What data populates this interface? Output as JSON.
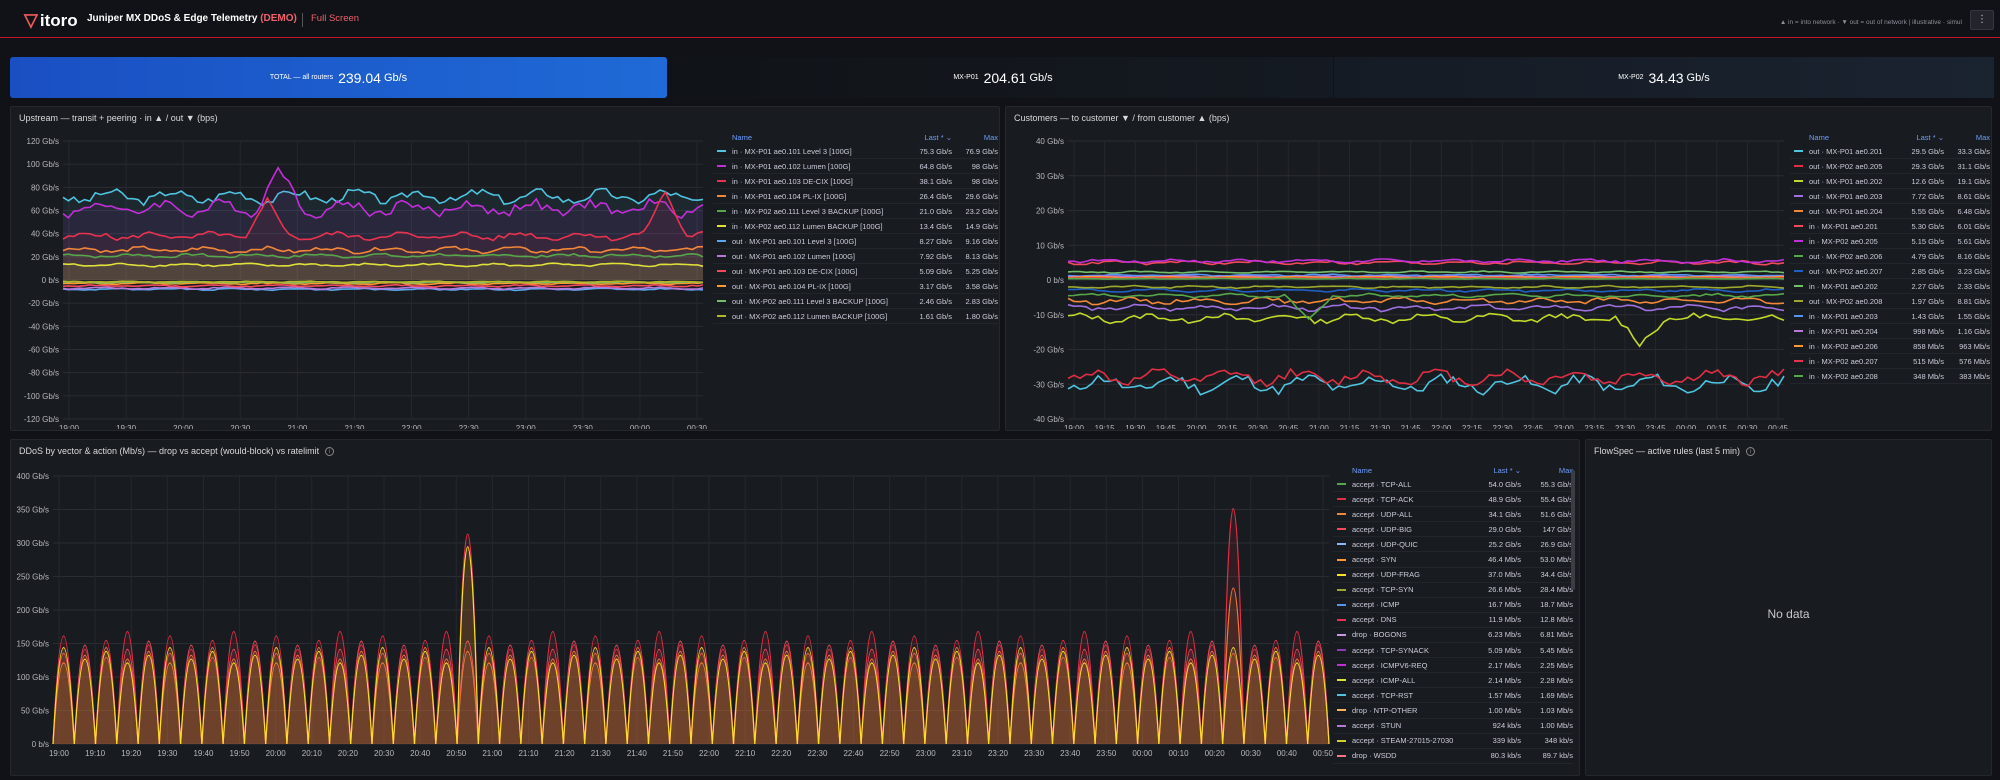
{
  "header": {
    "logo": "itoro",
    "title": "Juniper MX DDoS & Edge Telemetry",
    "demo": "(DEMO)",
    "fullscreen": "Full Screen",
    "legend_note": "▲ in = into network · ▼ out = out of network | illustrative · simul",
    "menu": "⋮"
  },
  "stats": [
    {
      "label": "TOTAL — all routers",
      "value": "239.04",
      "unit": "Gb/s"
    },
    {
      "label": "MX-P01",
      "value": "204.61",
      "unit": "Gb/s"
    },
    {
      "label": "MX-P02",
      "value": "34.43",
      "unit": "Gb/s"
    }
  ],
  "legend_headers": {
    "name": "Name",
    "last": "Last * ⌄",
    "max": "Max"
  },
  "panels": {
    "upstream": {
      "title": "Upstream — transit + peering · in ▲ / out ▼ (bps)",
      "yticks": [
        "120 Gb/s",
        "100 Gb/s",
        "80 Gb/s",
        "60 Gb/s",
        "40 Gb/s",
        "20 Gb/s",
        "0 b/s",
        "-20 Gb/s",
        "-40 Gb/s",
        "-60 Gb/s",
        "-80 Gb/s",
        "-100 Gb/s",
        "-120 Gb/s"
      ],
      "xticks": [
        "19:00",
        "19:30",
        "20:00",
        "20:30",
        "21:00",
        "21:30",
        "22:00",
        "22:30",
        "23:00",
        "23:30",
        "00:00",
        "00:30"
      ],
      "legend": [
        {
          "name": "in · MX-P01 ae0.101 Level 3 [100G]",
          "last": "75.3 Gb/s",
          "max": "76.9 Gb/s",
          "color": "#4fc3e0"
        },
        {
          "name": "in · MX-P01 ae0.102 Lumen [100G]",
          "last": "64.8 Gb/s",
          "max": "98 Gb/s",
          "color": "#c22fd9"
        },
        {
          "name": "in · MX-P01 ae0.103 DE-CIX [100G]",
          "last": "38.1 Gb/s",
          "max": "98 Gb/s",
          "color": "#e8324f"
        },
        {
          "name": "in · MX-P01 ae0.104 PL-IX [100G]",
          "last": "26.4 Gb/s",
          "max": "29.6 Gb/s",
          "color": "#f2873a"
        },
        {
          "name": "in · MX-P02 ae0.111 Level 3 BACKUP [100G]",
          "last": "21.0 Gb/s",
          "max": "23.2 Gb/s",
          "color": "#56a64b"
        },
        {
          "name": "in · MX-P02 ae0.112 Lumen BACKUP [100G]",
          "last": "13.4 Gb/s",
          "max": "14.9 Gb/s",
          "color": "#e0e03a"
        },
        {
          "name": "out · MX-P01 ae0.101 Level 3 [100G]",
          "last": "8.27 Gb/s",
          "max": "9.16 Gb/s",
          "color": "#5aa7f0"
        },
        {
          "name": "out · MX-P01 ae0.102 Lumen [100G]",
          "last": "7.92 Gb/s",
          "max": "8.13 Gb/s",
          "color": "#b877d9"
        },
        {
          "name": "out · MX-P01 ae0.103 DE-CIX [100G]",
          "last": "5.09 Gb/s",
          "max": "5.25 Gb/s",
          "color": "#f2495c"
        },
        {
          "name": "out · MX-P01 ae0.104 PL-IX [100G]",
          "last": "3.17 Gb/s",
          "max": "3.58 Gb/s",
          "color": "#ff9830"
        },
        {
          "name": "out · MX-P02 ae0.111 Level 3 BACKUP [100G]",
          "last": "2.46 Gb/s",
          "max": "2.83 Gb/s",
          "color": "#73bf69"
        },
        {
          "name": "out · MX-P02 ae0.112 Lumen BACKUP [100G]",
          "last": "1.61 Gb/s",
          "max": "1.80 Gb/s",
          "color": "#b5b52a"
        }
      ]
    },
    "customers": {
      "title": "Customers — to customer ▼ / from customer ▲ (bps)",
      "yticks": [
        "40 Gb/s",
        "30 Gb/s",
        "20 Gb/s",
        "10 Gb/s",
        "0 b/s",
        "-10 Gb/s",
        "-20 Gb/s",
        "-30 Gb/s",
        "-40 Gb/s"
      ],
      "xticks": [
        "19:00",
        "19:15",
        "19:30",
        "19:45",
        "20:00",
        "20:15",
        "20:30",
        "20:45",
        "21:00",
        "21:15",
        "21:30",
        "21:45",
        "22:00",
        "22:15",
        "22:30",
        "22:45",
        "23:00",
        "23:15",
        "23:30",
        "23:45",
        "00:00",
        "00:15",
        "00:30",
        "00:45"
      ],
      "legend": [
        {
          "name": "out · MX-P01 ae0.201",
          "last": "29.5 Gb/s",
          "max": "33.3 Gb/s",
          "color": "#4fc3e0"
        },
        {
          "name": "out · MX-P02 ae0.205",
          "last": "29.3 Gb/s",
          "max": "31.1 Gb/s",
          "color": "#e02f44"
        },
        {
          "name": "out · MX-P01 ae0.202",
          "last": "12.6 Gb/s",
          "max": "19.1 Gb/s",
          "color": "#c0d82a"
        },
        {
          "name": "out · MX-P01 ae0.203",
          "last": "7.72 Gb/s",
          "max": "8.61 Gb/s",
          "color": "#9e6fe0"
        },
        {
          "name": "out · MX-P01 ae0.204",
          "last": "5.55 Gb/s",
          "max": "6.48 Gb/s",
          "color": "#f2873a"
        },
        {
          "name": "in · MX-P01 ae0.201",
          "last": "5.30 Gb/s",
          "max": "6.01 Gb/s",
          "color": "#f2495c"
        },
        {
          "name": "in · MX-P02 ae0.205",
          "last": "5.15 Gb/s",
          "max": "5.61 Gb/s",
          "color": "#c22fd9"
        },
        {
          "name": "out · MX-P02 ae0.206",
          "last": "4.79 Gb/s",
          "max": "8.16 Gb/s",
          "color": "#56a64b"
        },
        {
          "name": "out · MX-P02 ae0.207",
          "last": "2.85 Gb/s",
          "max": "3.23 Gb/s",
          "color": "#1f60c4"
        },
        {
          "name": "in · MX-P01 ae0.202",
          "last": "2.27 Gb/s",
          "max": "2.33 Gb/s",
          "color": "#73bf69"
        },
        {
          "name": "out · MX-P02 ae0.208",
          "last": "1.97 Gb/s",
          "max": "8.81 Gb/s",
          "color": "#9fa82e"
        },
        {
          "name": "in · MX-P01 ae0.203",
          "last": "1.43 Gb/s",
          "max": "1.55 Gb/s",
          "color": "#5794f2"
        },
        {
          "name": "in · MX-P01 ae0.204",
          "last": "998 Mb/s",
          "max": "1.16 Gb/s",
          "color": "#b877d9"
        },
        {
          "name": "in · MX-P02 ae0.206",
          "last": "858 Mb/s",
          "max": "963 Mb/s",
          "color": "#ff9830"
        },
        {
          "name": "in · MX-P02 ae0.207",
          "last": "515 Mb/s",
          "max": "576 Mb/s",
          "color": "#e8324f"
        },
        {
          "name": "in · MX-P02 ae0.208",
          "last": "348 Mb/s",
          "max": "383 Mb/s",
          "color": "#56a64b"
        }
      ]
    },
    "ddos": {
      "title": "DDoS by vector & action (Mb/s) — drop vs accept (would-block) vs ratelimit",
      "yticks": [
        "400 Gb/s",
        "350 Gb/s",
        "300 Gb/s",
        "250 Gb/s",
        "200 Gb/s",
        "150 Gb/s",
        "100 Gb/s",
        "50 Gb/s",
        "0 b/s"
      ],
      "xticks": [
        "19:00",
        "19:10",
        "19:20",
        "19:30",
        "19:40",
        "19:50",
        "20:00",
        "20:10",
        "20:20",
        "20:30",
        "20:40",
        "20:50",
        "21:00",
        "21:10",
        "21:20",
        "21:30",
        "21:40",
        "21:50",
        "22:00",
        "22:10",
        "22:20",
        "22:30",
        "22:40",
        "22:50",
        "23:00",
        "23:10",
        "23:20",
        "23:30",
        "23:40",
        "23:50",
        "00:00",
        "00:10",
        "00:20",
        "00:30",
        "00:40",
        "00:50"
      ],
      "legend": [
        {
          "name": "accept · TCP-ALL",
          "last": "54.0 Gb/s",
          "max": "55.3 Gb/s",
          "color": "#56a64b"
        },
        {
          "name": "accept · TCP-ACK",
          "last": "48.9 Gb/s",
          "max": "55.4 Gb/s",
          "color": "#e02f44"
        },
        {
          "name": "accept · UDP-ALL",
          "last": "34.1 Gb/s",
          "max": "51.6 Gb/s",
          "color": "#f2873a"
        },
        {
          "name": "accept · UDP-BIG",
          "last": "29.0 Gb/s",
          "max": "147 Gb/s",
          "color": "#f2495c"
        },
        {
          "name": "accept · UDP-QUIC",
          "last": "25.2 Gb/s",
          "max": "26.9 Gb/s",
          "color": "#8ab8ff"
        },
        {
          "name": "accept · SYN",
          "last": "46.4 Mb/s",
          "max": "53.0 Mb/s",
          "color": "#ff9830"
        },
        {
          "name": "accept · UDP-FRAG",
          "last": "37.0 Mb/s",
          "max": "34.4 Gb/s",
          "color": "#fade2a"
        },
        {
          "name": "accept · TCP-SYN",
          "last": "26.6 Mb/s",
          "max": "28.4 Mb/s",
          "color": "#9fa82e"
        },
        {
          "name": "accept · ICMP",
          "last": "16.7 Mb/s",
          "max": "18.7 Mb/s",
          "color": "#5794f2"
        },
        {
          "name": "accept · DNS",
          "last": "11.9 Mb/s",
          "max": "12.8 Mb/s",
          "color": "#e8324f"
        },
        {
          "name": "drop · BOGONS",
          "last": "6.23 Mb/s",
          "max": "6.81 Mb/s",
          "color": "#ca95e5"
        },
        {
          "name": "accept · TCP-SYNACK",
          "last": "5.09 Mb/s",
          "max": "5.45 Mb/s",
          "color": "#8f3bb8"
        },
        {
          "name": "accept · ICMPV6-REQ",
          "last": "2.17 Mb/s",
          "max": "2.25 Mb/s",
          "color": "#c22fd9"
        },
        {
          "name": "accept · ICMP-ALL",
          "last": "2.14 Mb/s",
          "max": "2.28 Mb/s",
          "color": "#e0e03a"
        },
        {
          "name": "accept · TCP-RST",
          "last": "1.57 Mb/s",
          "max": "1.69 Mb/s",
          "color": "#4fc3e0"
        },
        {
          "name": "drop · NTP-OTHER",
          "last": "1.00 Mb/s",
          "max": "1.03 Mb/s",
          "color": "#ffb357"
        },
        {
          "name": "accept · STUN",
          "last": "924 kb/s",
          "max": "1.00 Mb/s",
          "color": "#b877d9"
        },
        {
          "name": "accept · STEAM-27015-27030",
          "last": "339 kb/s",
          "max": "348 kb/s",
          "color": "#d0d02a"
        },
        {
          "name": "drop · WSDD",
          "last": "80.3 kb/s",
          "max": "89.7 kb/s",
          "color": "#ff7383"
        }
      ]
    },
    "flowspec": {
      "title": "FlowSpec — active rules (last 5 min)",
      "nodata": "No data"
    }
  }
}
